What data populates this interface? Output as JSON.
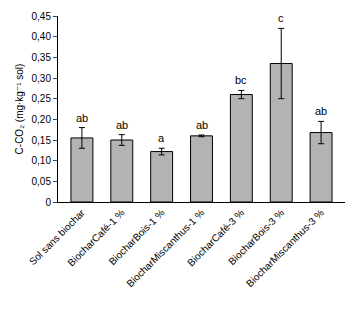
{
  "chart_data": {
    "type": "bar",
    "y_label": "C-CO₂ (mg·kg⁻¹ sol)",
    "categories": [
      "Sol sans biochar",
      "BiocharCafé-1 %",
      "BiocharBois-1 %",
      "BiocharMiscanthus-1 %",
      "BiocharCafé-3 %",
      "BiocharBois-3 %",
      "BiocharMiscanthus-3 %"
    ],
    "values": [
      0.155,
      0.15,
      0.122,
      0.16,
      0.26,
      0.335,
      0.168
    ],
    "errors": [
      0.025,
      0.013,
      0.008,
      0.002,
      0.01,
      0.085,
      0.027
    ],
    "letters": [
      "ab",
      "ab",
      "a",
      "ab",
      "bc",
      "c",
      "ab"
    ],
    "color": "#b3b3b3",
    "ylim": [
      0,
      0.45
    ],
    "yticks": [
      0,
      {
        "value": 0.05,
        "label": "0,05"
      },
      {
        "value": 0.1,
        "label": "0,10"
      },
      {
        "value": 0.15,
        "label": "0,15"
      },
      {
        "value": 0.2,
        "label": "0,20"
      },
      {
        "value": 0.25,
        "label": "0,25"
      },
      {
        "value": 0.3,
        "label": "0,30"
      },
      {
        "value": 0.35,
        "label": "0,35"
      },
      {
        "value": 0.4,
        "label": "0,40"
      },
      {
        "value": 0.45,
        "label": "0,45"
      }
    ],
    "grid": false
  }
}
